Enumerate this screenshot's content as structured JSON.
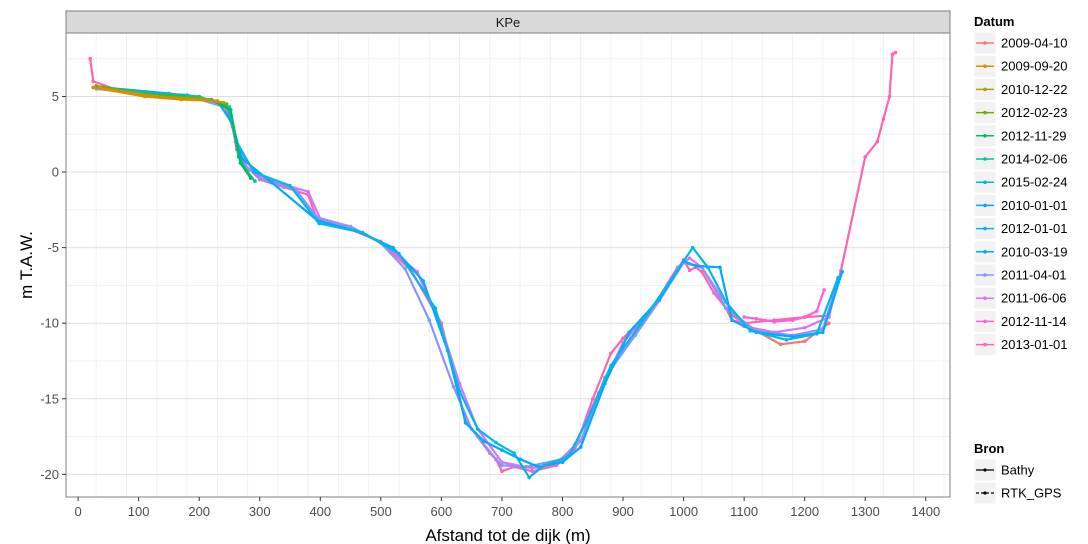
{
  "chart_data": {
    "type": "line",
    "title": "",
    "facet_label": "KPe",
    "xlabel": "Afstand tot de dijk (m)",
    "ylabel": "m T.A.W.",
    "xlim": [
      -20,
      1440
    ],
    "ylim": [
      -21.5,
      9.2
    ],
    "x_ticks": [
      0,
      100,
      200,
      300,
      400,
      500,
      600,
      700,
      800,
      900,
      1000,
      1100,
      1200,
      1300,
      1400
    ],
    "y_ticks": [
      -20,
      -15,
      -10,
      -5,
      0,
      5
    ],
    "grid": true,
    "legend_placement": "right",
    "legend_datum": {
      "title": "Datum",
      "entries": [
        {
          "label": "2009-04-10",
          "color": "#F8766D"
        },
        {
          "label": "2009-09-20",
          "color": "#DB8E00"
        },
        {
          "label": "2010-12-22",
          "color": "#AEA200"
        },
        {
          "label": "2012-02-23",
          "color": "#64B200"
        },
        {
          "label": "2012-11-29",
          "color": "#00BD5C"
        },
        {
          "label": "2014-02-06",
          "color": "#00C1A7"
        },
        {
          "label": "2015-02-24",
          "color": "#00BADE"
        },
        {
          "label": "2010-01-01",
          "color": "#00A6FF"
        },
        {
          "label": "2012-01-01",
          "color": "#00B8E7"
        },
        {
          "label": "2010-03-19",
          "color": "#00A9FF"
        },
        {
          "label": "2011-04-01",
          "color": "#8B93FF"
        },
        {
          "label": "2011-06-06",
          "color": "#D575FE"
        },
        {
          "label": "2012-11-14",
          "color": "#F962DD"
        },
        {
          "label": "2013-01-01",
          "color": "#FF65AC"
        }
      ]
    },
    "legend_bron": {
      "title": "Bron",
      "entries": [
        {
          "label": "Bathy",
          "linetype": "solid"
        },
        {
          "label": "RTK_GPS",
          "linetype": "dashed"
        }
      ]
    },
    "series": [
      {
        "color": "#FF65AC",
        "x": [
          20,
          25,
          60,
          100,
          150,
          200,
          240,
          255,
          262,
          275,
          300,
          340,
          380,
          395,
          450,
          500,
          550,
          600,
          640,
          660,
          690,
          700,
          720,
          750,
          790,
          820,
          850,
          880,
          900,
          950,
          980,
          1000,
          1010,
          1020,
          1030,
          1050,
          1070,
          1080,
          1100,
          1150,
          1200,
          1240,
          1260,
          1300,
          1320,
          1330,
          1340,
          1345,
          1350
        ],
        "y": [
          7.5,
          6.0,
          5.5,
          5.2,
          5.1,
          4.9,
          4.5,
          3.0,
          1.5,
          0.5,
          -0.5,
          -1.0,
          -1.5,
          -3.2,
          -3.8,
          -4.6,
          -6.5,
          -10.0,
          -16.5,
          -17.5,
          -19.0,
          -19.8,
          -19.5,
          -19.8,
          -19.4,
          -18.4,
          -15.0,
          -12.0,
          -11.0,
          -9.0,
          -7.0,
          -5.8,
          -6.5,
          -6.3,
          -6.6,
          -8.0,
          -9.0,
          -9.8,
          -10.0,
          -9.8,
          -9.6,
          -9.5,
          -6.5,
          1.0,
          2.0,
          3.5,
          5.0,
          7.8,
          7.9
        ]
      },
      {
        "color": "#F962DD",
        "x": [
          1100,
          1120,
          1150,
          1180,
          1200,
          1220,
          1232
        ],
        "y": [
          -9.6,
          -9.7,
          -9.9,
          -9.8,
          -9.6,
          -9.2,
          -7.8
        ]
      },
      {
        "color": "#F8766D",
        "x": [
          1080,
          1120,
          1160,
          1200,
          1240
        ],
        "y": [
          -9.5,
          -10.5,
          -11.4,
          -11.2,
          -10.0
        ]
      },
      {
        "color": "#D575FE",
        "x": [
          25,
          100,
          200,
          248,
          260,
          280,
          320,
          380,
          400,
          450,
          500,
          560,
          600,
          630,
          660,
          700,
          750,
          790,
          820,
          860,
          900,
          950,
          990,
          1010,
          1030,
          1060,
          1100,
          1150,
          1200,
          1240,
          1255
        ],
        "y": [
          5.6,
          5.3,
          4.9,
          4.3,
          2.0,
          0.2,
          -0.6,
          -1.3,
          -3.1,
          -3.7,
          -4.6,
          -6.6,
          -10.3,
          -14.0,
          -17.0,
          -19.2,
          -19.6,
          -19.3,
          -18.1,
          -14.6,
          -11.3,
          -8.9,
          -6.3,
          -5.7,
          -6.3,
          -8.1,
          -10.2,
          -10.6,
          -10.3,
          -9.6,
          -7.2
        ]
      },
      {
        "color": "#8B93FF",
        "x": [
          30,
          100,
          200,
          250,
          265,
          300,
          360,
          395,
          450,
          500,
          540,
          580,
          620,
          650,
          680,
          700,
          740,
          800,
          830,
          870,
          920,
          960,
          1000,
          1030,
          1070,
          1120,
          1180,
          1230,
          1260
        ],
        "y": [
          5.5,
          5.2,
          4.8,
          4.2,
          1.5,
          -0.4,
          -1.2,
          -3.0,
          -3.6,
          -4.7,
          -6.4,
          -9.8,
          -14.2,
          -17.0,
          -18.6,
          -19.4,
          -19.5,
          -19.0,
          -17.8,
          -13.6,
          -10.8,
          -8.5,
          -6.0,
          -6.3,
          -9.0,
          -10.5,
          -10.8,
          -10.4,
          -6.6
        ]
      },
      {
        "color": "#00A9FF",
        "x": [
          40,
          150,
          230,
          255,
          270,
          320,
          395,
          460,
          520,
          570,
          610,
          640,
          670,
          700,
          730,
          760,
          800,
          830,
          870,
          910,
          960,
          1000,
          1020,
          1060,
          1080,
          1120,
          1180,
          1230,
          1262
        ],
        "y": [
          5.6,
          5.2,
          4.7,
          3.2,
          0.9,
          -0.7,
          -3.2,
          -3.9,
          -5.0,
          -7.2,
          -11.8,
          -16.6,
          -17.8,
          -18.4,
          -19.0,
          -19.5,
          -19.2,
          -18.2,
          -14.0,
          -10.6,
          -8.4,
          -5.9,
          -6.2,
          -6.3,
          -9.8,
          -10.6,
          -10.9,
          -10.6,
          -6.6
        ]
      },
      {
        "color": "#00B8E7",
        "x": [
          60,
          180,
          245,
          262,
          290,
          350,
          398,
          470,
          530,
          590,
          630,
          660,
          690,
          720,
          745,
          770,
          810,
          840,
          880,
          930,
          990,
          1015,
          1040,
          1070,
          1110,
          1170,
          1220,
          1255
        ],
        "y": [
          5.4,
          5.1,
          4.5,
          2.0,
          0.0,
          -0.9,
          -3.4,
          -4.0,
          -5.4,
          -9.0,
          -14.5,
          -17.0,
          -17.9,
          -18.6,
          -20.2,
          -19.4,
          -18.8,
          -16.5,
          -12.8,
          -10.0,
          -6.5,
          -5.0,
          -6.3,
          -8.6,
          -10.5,
          -11.1,
          -10.7,
          -7.0
        ]
      },
      {
        "color": "#00C1A7",
        "x": [
          80,
          200,
          250,
          265,
          280,
          292
        ],
        "y": [
          5.3,
          5.0,
          4.3,
          1.0,
          0.0,
          -0.6
        ]
      },
      {
        "color": "#00BD5C",
        "x": [
          100,
          220,
          252,
          268,
          285
        ],
        "y": [
          5.2,
          4.8,
          4.1,
          0.6,
          -0.4
        ]
      },
      {
        "color": "#64B200",
        "x": [
          30,
          120,
          200,
          245
        ],
        "y": [
          5.7,
          5.1,
          4.9,
          4.5
        ]
      },
      {
        "color": "#AEA200",
        "x": [
          35,
          130,
          210,
          240
        ],
        "y": [
          5.6,
          5.0,
          4.8,
          4.6
        ]
      },
      {
        "color": "#DB8E00",
        "x": [
          25,
          110,
          170,
          230
        ],
        "y": [
          5.6,
          5.0,
          4.8,
          4.7
        ]
      }
    ]
  }
}
